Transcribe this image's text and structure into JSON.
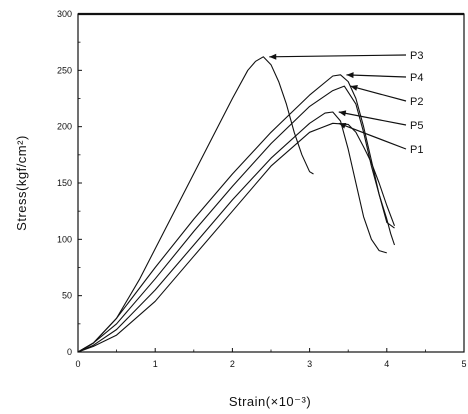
{
  "chart_data": {
    "type": "line",
    "title": "",
    "xlabel": "Strain(×10⁻³)",
    "ylabel": "Stress(kgf/cm²)",
    "xlim": [
      0,
      5
    ],
    "ylim": [
      0,
      300
    ],
    "xticks": [
      "0",
      "1",
      "2",
      "3",
      "4",
      "5"
    ],
    "yticks": [
      "0",
      "50",
      "100",
      "150",
      "200",
      "250",
      "300"
    ],
    "grid": false,
    "legend": "none; series labelled by callout arrows on the right",
    "line_color": "#111111",
    "series": [
      {
        "name": "P3",
        "x": [
          0,
          0.2,
          0.5,
          0.8,
          1.1,
          1.4,
          1.7,
          2.0,
          2.2,
          2.3,
          2.4,
          2.5,
          2.6,
          2.7,
          2.8,
          2.9,
          3.0,
          3.05
        ],
        "y": [
          0,
          8,
          30,
          65,
          105,
          145,
          185,
          225,
          250,
          258,
          262,
          255,
          240,
          220,
          195,
          175,
          160,
          158
        ]
      },
      {
        "name": "P4",
        "x": [
          0,
          0.2,
          0.5,
          1.0,
          1.5,
          2.0,
          2.5,
          3.0,
          3.3,
          3.4,
          3.5,
          3.6,
          3.7,
          3.8,
          3.9,
          4.0,
          4.1
        ],
        "y": [
          0,
          8,
          30,
          75,
          118,
          158,
          195,
          228,
          245,
          246,
          240,
          225,
          200,
          170,
          140,
          115,
          110
        ]
      },
      {
        "name": "P2",
        "x": [
          0,
          0.2,
          0.5,
          1.0,
          1.5,
          2.0,
          2.5,
          3.0,
          3.3,
          3.45,
          3.6,
          3.7,
          3.8,
          3.9,
          4.0,
          4.05,
          4.1
        ],
        "y": [
          0,
          8,
          25,
          65,
          107,
          147,
          185,
          218,
          232,
          236,
          220,
          195,
          165,
          140,
          118,
          105,
          95
        ]
      },
      {
        "name": "P5",
        "x": [
          0,
          0.2,
          0.5,
          1.0,
          1.5,
          2.0,
          2.5,
          3.0,
          3.2,
          3.3,
          3.4,
          3.5,
          3.6,
          3.7,
          3.8,
          3.9,
          4.0
        ],
        "y": [
          0,
          6,
          20,
          55,
          95,
          135,
          172,
          203,
          212,
          213,
          205,
          180,
          150,
          120,
          100,
          90,
          88
        ]
      },
      {
        "name": "P1",
        "x": [
          0,
          0.2,
          0.5,
          1.0,
          1.5,
          2.0,
          2.5,
          3.0,
          3.3,
          3.5,
          3.6,
          3.7,
          3.75,
          3.8,
          3.9,
          4.0,
          4.1
        ],
        "y": [
          0,
          5,
          15,
          45,
          85,
          125,
          165,
          195,
          203,
          202,
          195,
          182,
          175,
          168,
          150,
          130,
          112
        ]
      }
    ]
  }
}
